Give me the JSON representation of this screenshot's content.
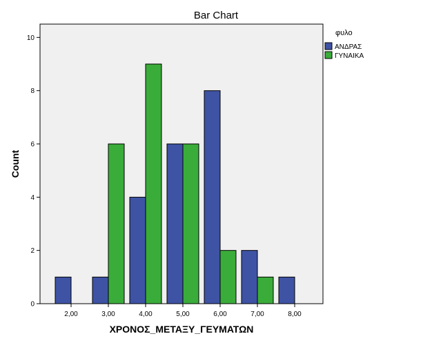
{
  "chart_data": {
    "type": "bar",
    "title": "Bar Chart",
    "xlabel": "ΧΡΟΝΟΣ_ΜΕΤΑΞΥ_ΓΕΥΜΑΤΩΝ",
    "ylabel": "Count",
    "categories": [
      "2,00",
      "3,00",
      "4,00",
      "5,00",
      "6,00",
      "7,00",
      "8,00"
    ],
    "ylim": [
      0,
      10.5
    ],
    "yticks": [
      0,
      2,
      4,
      6,
      8,
      10
    ],
    "legend": {
      "title": "φυλο",
      "position": "right"
    },
    "series": [
      {
        "name": "ΑΝΔΡΑΣ",
        "color": "#3e53a4",
        "values": [
          1,
          1,
          4,
          6,
          8,
          2,
          1
        ]
      },
      {
        "name": "ΓΥΝΑΙΚΑ",
        "color": "#3aac3a",
        "values": [
          0,
          6,
          9,
          6,
          2,
          1,
          0
        ]
      }
    ],
    "plot_background": "#f0f0f0"
  }
}
